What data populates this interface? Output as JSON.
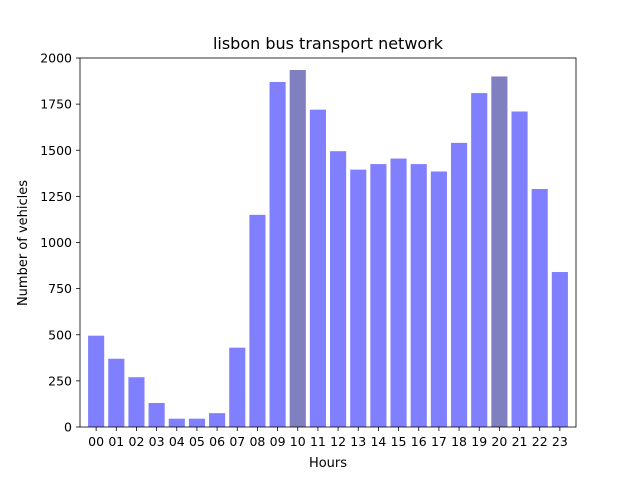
{
  "chart_data": {
    "type": "bar",
    "title": "lisbon bus transport network",
    "xlabel": "Hours",
    "ylabel": "Number of vehicles",
    "categories": [
      "00",
      "01",
      "02",
      "03",
      "04",
      "05",
      "06",
      "07",
      "08",
      "09",
      "10",
      "11",
      "12",
      "13",
      "14",
      "15",
      "16",
      "17",
      "18",
      "19",
      "20",
      "21",
      "22",
      "23"
    ],
    "values": [
      495,
      370,
      270,
      130,
      45,
      45,
      75,
      430,
      1150,
      1870,
      1935,
      1720,
      1495,
      1395,
      1425,
      1455,
      1425,
      1385,
      1540,
      1810,
      1900,
      1710,
      1290,
      840
    ],
    "highlighted_categories": [
      "10",
      "20"
    ],
    "ylim": [
      0,
      2000
    ],
    "yticks": [
      0,
      250,
      500,
      750,
      1000,
      1250,
      1500,
      1750,
      2000
    ],
    "grid": false,
    "colors": {
      "bar": "#8080ff",
      "bar_highlight": "#8080c0",
      "axis": "#000000"
    }
  }
}
